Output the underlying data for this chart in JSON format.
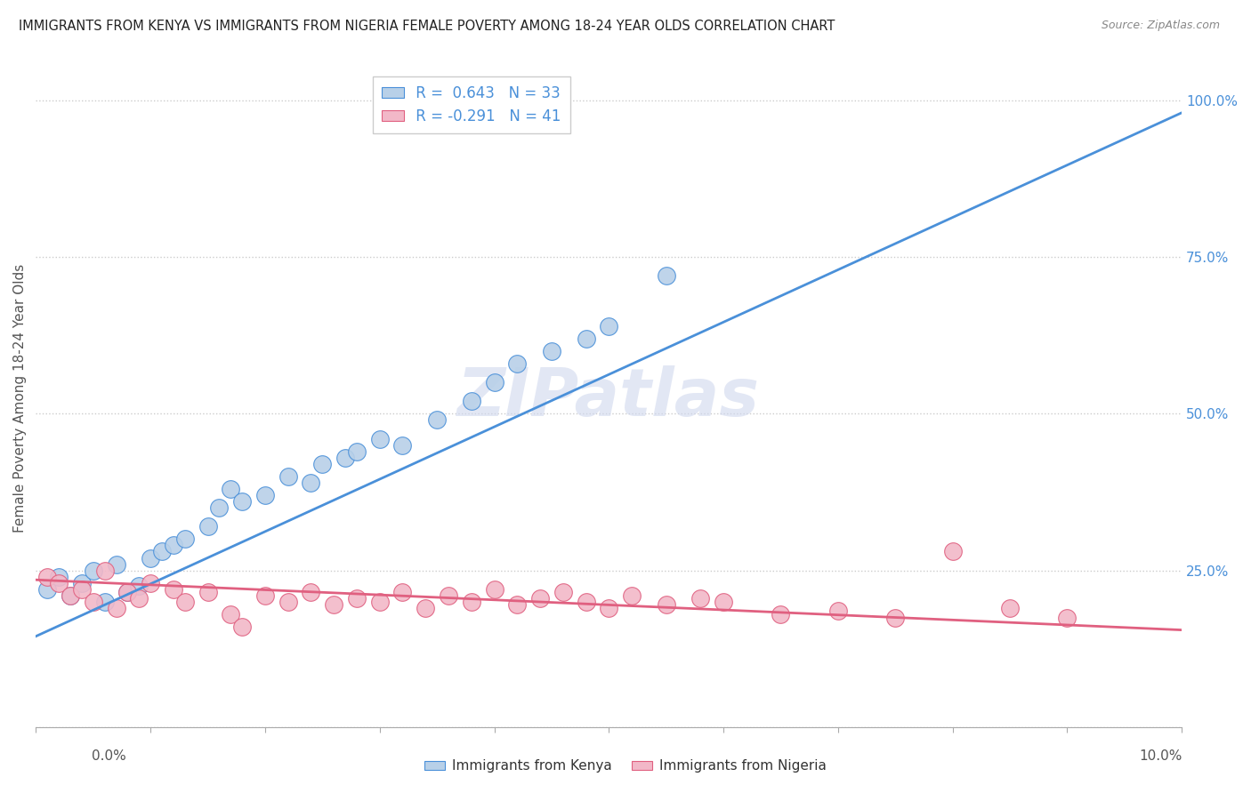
{
  "title": "IMMIGRANTS FROM KENYA VS IMMIGRANTS FROM NIGERIA FEMALE POVERTY AMONG 18-24 YEAR OLDS CORRELATION CHART",
  "source": "Source: ZipAtlas.com",
  "kenya_R": 0.643,
  "kenya_N": 33,
  "nigeria_R": -0.291,
  "nigeria_N": 41,
  "kenya_color": "#b8d0e8",
  "nigeria_color": "#f2b8c8",
  "kenya_line_color": "#4a90d9",
  "nigeria_line_color": "#e06080",
  "watermark": "ZIPatlas",
  "kenya_scatter_x": [
    0.001,
    0.002,
    0.003,
    0.004,
    0.005,
    0.006,
    0.007,
    0.008,
    0.009,
    0.01,
    0.011,
    0.012,
    0.013,
    0.015,
    0.016,
    0.017,
    0.018,
    0.02,
    0.022,
    0.024,
    0.025,
    0.027,
    0.028,
    0.03,
    0.032,
    0.035,
    0.038,
    0.04,
    0.042,
    0.045,
    0.048,
    0.05,
    0.055
  ],
  "kenya_scatter_y": [
    0.22,
    0.24,
    0.21,
    0.23,
    0.25,
    0.2,
    0.26,
    0.215,
    0.225,
    0.27,
    0.28,
    0.29,
    0.3,
    0.32,
    0.35,
    0.38,
    0.36,
    0.37,
    0.4,
    0.39,
    0.42,
    0.43,
    0.44,
    0.46,
    0.45,
    0.49,
    0.52,
    0.55,
    0.58,
    0.6,
    0.62,
    0.64,
    0.72
  ],
  "nigeria_scatter_x": [
    0.001,
    0.002,
    0.003,
    0.004,
    0.005,
    0.006,
    0.007,
    0.008,
    0.009,
    0.01,
    0.012,
    0.013,
    0.015,
    0.017,
    0.018,
    0.02,
    0.022,
    0.024,
    0.026,
    0.028,
    0.03,
    0.032,
    0.034,
    0.036,
    0.038,
    0.04,
    0.042,
    0.044,
    0.046,
    0.048,
    0.05,
    0.052,
    0.055,
    0.058,
    0.06,
    0.065,
    0.07,
    0.075,
    0.08,
    0.085,
    0.09
  ],
  "nigeria_scatter_y": [
    0.24,
    0.23,
    0.21,
    0.22,
    0.2,
    0.25,
    0.19,
    0.215,
    0.205,
    0.23,
    0.22,
    0.2,
    0.215,
    0.18,
    0.16,
    0.21,
    0.2,
    0.215,
    0.195,
    0.205,
    0.2,
    0.215,
    0.19,
    0.21,
    0.2,
    0.22,
    0.195,
    0.205,
    0.215,
    0.2,
    0.19,
    0.21,
    0.195,
    0.205,
    0.2,
    0.18,
    0.185,
    0.175,
    0.28,
    0.19,
    0.175
  ],
  "kenya_line_x0": 0.0,
  "kenya_line_y0": 0.145,
  "kenya_line_x1": 0.1,
  "kenya_line_y1": 0.98,
  "nigeria_line_x0": 0.0,
  "nigeria_line_y0": 0.235,
  "nigeria_line_x1": 0.1,
  "nigeria_line_y1": 0.155,
  "xlim": [
    0,
    0.1
  ],
  "ylim": [
    0,
    1.05
  ],
  "yticks": [
    0.0,
    0.25,
    0.5,
    0.75,
    1.0
  ],
  "ytick_labels": [
    "",
    "25.0%",
    "50.0%",
    "75.0%",
    "100.0%"
  ]
}
